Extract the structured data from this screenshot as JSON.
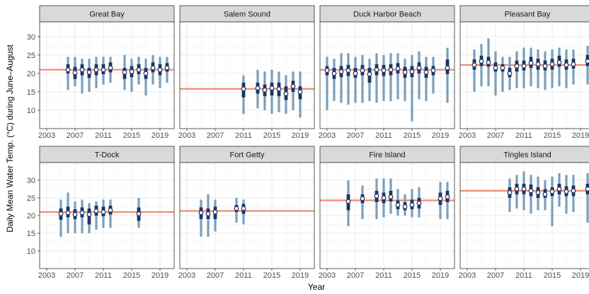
{
  "chart_data": {
    "type": "faceted-pointrange",
    "xlabel": "Year",
    "ylabel": "Daily Mean Water Temp. (°C) during June–August",
    "x_ticks": [
      2003,
      2007,
      2011,
      2015,
      2019
    ],
    "xlim": [
      2002,
      2021
    ],
    "facet_rows": [
      {
        "ylim": [
          5,
          34
        ],
        "y_ticks": [
          10,
          15,
          20,
          25,
          30
        ],
        "panels": [
          "Great Bay",
          "Salem Sound",
          "Duck Harbor Beach",
          "Pleasant Bay"
        ]
      },
      {
        "ylim": [
          5,
          35
        ],
        "y_ticks": [
          10,
          15,
          20,
          25,
          30
        ],
        "panels": [
          "T-Dock",
          "Fort Getty",
          "Fire Island",
          "Tingles Island"
        ]
      }
    ],
    "colors": {
      "reference_line": "#f08a70",
      "outer_range": "#7a9fbc",
      "inner_range": "#1d3564",
      "point_fill": "#ffffff",
      "panel_bg": "#ffffff",
      "grid": "#ebebeb",
      "strip_bg": "#d9d9d9",
      "border": "#333333"
    },
    "panels": [
      {
        "name": "Great Bay",
        "reference": 21.0,
        "series": [
          {
            "x": 2006,
            "mean": 21.0,
            "q25": 20.0,
            "q75": 22.5,
            "min": 15.5,
            "max": 24.5
          },
          {
            "x": 2007,
            "mean": 20.2,
            "q25": 18.5,
            "q75": 21.8,
            "min": 16.5,
            "max": 24.5
          },
          {
            "x": 2008,
            "mean": 21.0,
            "q25": 19.5,
            "q75": 22.5,
            "min": 14.5,
            "max": 24.0
          },
          {
            "x": 2009,
            "mean": 20.3,
            "q25": 18.8,
            "q75": 21.5,
            "min": 15.0,
            "max": 24.0
          },
          {
            "x": 2010,
            "mean": 21.0,
            "q25": 19.5,
            "q75": 22.5,
            "min": 16.0,
            "max": 24.5
          },
          {
            "x": 2011,
            "mean": 21.0,
            "q25": 19.8,
            "q75": 22.5,
            "min": 17.0,
            "max": 24.5
          },
          {
            "x": 2012,
            "mean": 21.5,
            "q25": 20.3,
            "q75": 23.0,
            "min": 17.5,
            "max": 24.5
          },
          {
            "x": 2014,
            "mean": 20.3,
            "q25": 18.5,
            "q75": 21.5,
            "min": 15.5,
            "max": 25.0
          },
          {
            "x": 2015,
            "mean": 20.5,
            "q25": 19.0,
            "q75": 22.0,
            "min": 15.0,
            "max": 24.0
          },
          {
            "x": 2016,
            "mean": 21.0,
            "q25": 19.8,
            "q75": 22.5,
            "min": 17.0,
            "max": 24.5
          },
          {
            "x": 2017,
            "mean": 20.0,
            "q25": 18.5,
            "q75": 21.5,
            "min": 14.0,
            "max": 24.0
          },
          {
            "x": 2018,
            "mean": 21.5,
            "q25": 20.3,
            "q75": 23.0,
            "min": 17.0,
            "max": 25.0
          },
          {
            "x": 2019,
            "mean": 21.0,
            "q25": 19.5,
            "q75": 22.5,
            "min": 16.0,
            "max": 24.5
          },
          {
            "x": 2020,
            "mean": 21.5,
            "q25": 20.5,
            "q75": 22.8,
            "min": 17.5,
            "max": 24.5
          }
        ]
      },
      {
        "name": "Salem Sound",
        "reference": 15.8,
        "series": [
          {
            "x": 2011,
            "mean": 15.8,
            "q25": 13.5,
            "q75": 17.5,
            "min": 9.0,
            "max": 19.5
          },
          {
            "x": 2013,
            "mean": 16.0,
            "q25": 14.5,
            "q75": 17.5,
            "min": 10.5,
            "max": 21.0
          },
          {
            "x": 2014,
            "mean": 15.5,
            "q25": 13.8,
            "q75": 17.0,
            "min": 10.0,
            "max": 20.5
          },
          {
            "x": 2015,
            "mean": 16.0,
            "q25": 14.0,
            "q75": 17.5,
            "min": 9.0,
            "max": 21.0
          },
          {
            "x": 2016,
            "mean": 15.8,
            "q25": 13.8,
            "q75": 17.5,
            "min": 9.5,
            "max": 20.5
          },
          {
            "x": 2017,
            "mean": 14.5,
            "q25": 12.8,
            "q75": 16.5,
            "min": 9.0,
            "max": 19.5
          },
          {
            "x": 2018,
            "mean": 16.5,
            "q25": 15.0,
            "q75": 18.0,
            "min": 10.0,
            "max": 20.5
          },
          {
            "x": 2019,
            "mean": 15.0,
            "q25": 13.0,
            "q75": 16.5,
            "min": 8.0,
            "max": 20.5
          }
        ]
      },
      {
        "name": "Duck Harbor Beach",
        "reference": 21.0,
        "series": [
          {
            "x": 2003,
            "mean": 20.8,
            "q25": 19.5,
            "q75": 22.0,
            "min": 10.0,
            "max": 24.5
          },
          {
            "x": 2004,
            "mean": 20.0,
            "q25": 18.5,
            "q75": 21.5,
            "min": 12.5,
            "max": 24.0
          },
          {
            "x": 2005,
            "mean": 20.5,
            "q25": 19.0,
            "q75": 22.0,
            "min": 12.0,
            "max": 25.5
          },
          {
            "x": 2006,
            "mean": 20.8,
            "q25": 19.3,
            "q75": 22.3,
            "min": 11.5,
            "max": 25.5
          },
          {
            "x": 2007,
            "mean": 20.0,
            "q25": 18.8,
            "q75": 21.5,
            "min": 12.0,
            "max": 24.5
          },
          {
            "x": 2008,
            "mean": 20.8,
            "q25": 19.5,
            "q75": 22.3,
            "min": 12.0,
            "max": 25.0
          },
          {
            "x": 2009,
            "mean": 19.8,
            "q25": 17.5,
            "q75": 21.5,
            "min": 12.5,
            "max": 24.0
          },
          {
            "x": 2010,
            "mean": 21.0,
            "q25": 19.5,
            "q75": 22.5,
            "min": 12.0,
            "max": 25.5
          },
          {
            "x": 2011,
            "mean": 20.8,
            "q25": 19.3,
            "q75": 22.3,
            "min": 12.5,
            "max": 25.0
          },
          {
            "x": 2012,
            "mean": 21.0,
            "q25": 19.5,
            "q75": 22.5,
            "min": 12.5,
            "max": 25.5
          },
          {
            "x": 2013,
            "mean": 21.3,
            "q25": 20.0,
            "q75": 22.8,
            "min": 13.0,
            "max": 25.5
          },
          {
            "x": 2014,
            "mean": 20.3,
            "q25": 18.8,
            "q75": 21.8,
            "min": 12.5,
            "max": 24.0
          },
          {
            "x": 2015,
            "mean": 20.5,
            "q25": 19.0,
            "q75": 22.0,
            "min": 7.0,
            "max": 25.0
          },
          {
            "x": 2016,
            "mean": 21.5,
            "q25": 20.0,
            "q75": 23.0,
            "min": 13.0,
            "max": 26.0
          },
          {
            "x": 2017,
            "mean": 20.3,
            "q25": 18.8,
            "q75": 21.8,
            "min": 12.5,
            "max": 24.5
          },
          {
            "x": 2018,
            "mean": 20.8,
            "q25": 19.5,
            "q75": 22.0,
            "min": 14.5,
            "max": 24.5
          },
          {
            "x": 2020,
            "mean": 21.5,
            "q25": 19.8,
            "q75": 23.8,
            "min": 12.0,
            "max": 27.0
          }
        ]
      },
      {
        "name": "Pleasant Bay",
        "reference": 22.3,
        "series": [
          {
            "x": 2004,
            "mean": 22.3,
            "q25": 21.0,
            "q75": 23.8,
            "min": 15.0,
            "max": 26.5
          },
          {
            "x": 2005,
            "mean": 23.3,
            "q25": 22.0,
            "q75": 24.8,
            "min": 16.5,
            "max": 28.0
          },
          {
            "x": 2006,
            "mean": 23.0,
            "q25": 21.8,
            "q75": 24.5,
            "min": 16.5,
            "max": 29.5
          },
          {
            "x": 2007,
            "mean": 21.5,
            "q25": 20.5,
            "q75": 23.0,
            "min": 14.0,
            "max": 26.0
          },
          {
            "x": 2008,
            "mean": 21.5,
            "q25": 20.5,
            "q75": 22.5,
            "min": 15.0,
            "max": 24.5
          },
          {
            "x": 2009,
            "mean": 20.0,
            "q25": 19.0,
            "q75": 21.5,
            "min": 15.5,
            "max": 24.5
          },
          {
            "x": 2010,
            "mean": 22.0,
            "q25": 20.5,
            "q75": 23.5,
            "min": 16.0,
            "max": 26.0
          },
          {
            "x": 2011,
            "mean": 22.0,
            "q25": 20.8,
            "q75": 23.5,
            "min": 16.0,
            "max": 27.0
          },
          {
            "x": 2012,
            "mean": 22.8,
            "q25": 21.5,
            "q75": 24.5,
            "min": 16.5,
            "max": 27.0
          },
          {
            "x": 2013,
            "mean": 22.5,
            "q25": 21.0,
            "q75": 24.0,
            "min": 16.0,
            "max": 26.5
          },
          {
            "x": 2014,
            "mean": 22.0,
            "q25": 20.8,
            "q75": 23.5,
            "min": 15.5,
            "max": 26.0
          },
          {
            "x": 2015,
            "mean": 22.5,
            "q25": 21.0,
            "q75": 24.0,
            "min": 16.0,
            "max": 26.5
          },
          {
            "x": 2016,
            "mean": 23.0,
            "q25": 21.8,
            "q75": 24.8,
            "min": 16.5,
            "max": 27.0
          },
          {
            "x": 2017,
            "mean": 22.3,
            "q25": 21.0,
            "q75": 23.8,
            "min": 16.0,
            "max": 26.5
          },
          {
            "x": 2018,
            "mean": 22.5,
            "q25": 21.3,
            "q75": 24.0,
            "min": 17.0,
            "max": 26.5
          },
          {
            "x": 2020,
            "mean": 23.3,
            "q25": 22.0,
            "q75": 25.0,
            "min": 17.0,
            "max": 27.5
          }
        ]
      },
      {
        "name": "T-Dock",
        "reference": 21.0,
        "series": [
          {
            "x": 2005,
            "mean": 20.5,
            "q25": 18.8,
            "q75": 22.0,
            "min": 14.0,
            "max": 24.5
          },
          {
            "x": 2006,
            "mean": 20.8,
            "q25": 19.5,
            "q75": 22.5,
            "min": 15.0,
            "max": 26.5
          },
          {
            "x": 2007,
            "mean": 20.3,
            "q25": 19.0,
            "q75": 21.8,
            "min": 15.0,
            "max": 24.0
          },
          {
            "x": 2008,
            "mean": 20.8,
            "q25": 19.5,
            "q75": 22.3,
            "min": 15.0,
            "max": 24.5
          },
          {
            "x": 2009,
            "mean": 20.3,
            "q25": 17.5,
            "q75": 22.0,
            "min": 15.0,
            "max": 23.5
          },
          {
            "x": 2010,
            "mean": 21.3,
            "q25": 20.0,
            "q75": 22.8,
            "min": 16.0,
            "max": 24.0
          },
          {
            "x": 2011,
            "mean": 21.0,
            "q25": 19.8,
            "q75": 22.5,
            "min": 16.5,
            "max": 24.5
          },
          {
            "x": 2012,
            "mean": 21.5,
            "q25": 20.3,
            "q75": 22.8,
            "min": 16.5,
            "max": 24.5
          },
          {
            "x": 2016,
            "mean": 20.5,
            "q25": 18.5,
            "q75": 22.3,
            "min": 16.5,
            "max": 25.0
          }
        ]
      },
      {
        "name": "Fort Getty",
        "reference": 21.3,
        "series": [
          {
            "x": 2005,
            "mean": 20.8,
            "q25": 19.0,
            "q75": 22.3,
            "min": 14.0,
            "max": 24.5
          },
          {
            "x": 2006,
            "mean": 20.5,
            "q25": 19.0,
            "q75": 22.0,
            "min": 14.0,
            "max": 26.0
          },
          {
            "x": 2007,
            "mean": 21.0,
            "q25": 19.0,
            "q75": 22.5,
            "min": 15.5,
            "max": 24.5
          },
          {
            "x": 2010,
            "mean": 22.0,
            "q25": 21.0,
            "q75": 23.0,
            "min": 18.0,
            "max": 25.0
          },
          {
            "x": 2011,
            "mean": 22.0,
            "q25": 20.5,
            "q75": 23.3,
            "min": 17.5,
            "max": 24.5
          }
        ]
      },
      {
        "name": "Fire Island",
        "reference": 24.3,
        "series": [
          {
            "x": 2006,
            "mean": 24.0,
            "q25": 21.5,
            "q75": 26.0,
            "min": 17.0,
            "max": 30.0
          },
          {
            "x": 2008,
            "mean": 24.8,
            "q25": 23.5,
            "q75": 26.0,
            "min": 19.0,
            "max": 28.5
          },
          {
            "x": 2010,
            "mean": 25.5,
            "q25": 23.8,
            "q75": 27.0,
            "min": 19.0,
            "max": 30.5
          },
          {
            "x": 2011,
            "mean": 25.0,
            "q25": 23.5,
            "q75": 26.5,
            "min": 19.5,
            "max": 30.5
          },
          {
            "x": 2012,
            "mean": 25.3,
            "q25": 24.0,
            "q75": 27.0,
            "min": 20.5,
            "max": 30.5
          },
          {
            "x": 2013,
            "mean": 23.0,
            "q25": 21.8,
            "q75": 24.3,
            "min": 20.0,
            "max": 27.5
          },
          {
            "x": 2014,
            "mean": 22.5,
            "q25": 21.5,
            "q75": 23.8,
            "min": 20.0,
            "max": 26.0
          },
          {
            "x": 2015,
            "mean": 23.0,
            "q25": 21.8,
            "q75": 24.5,
            "min": 19.5,
            "max": 27.5
          },
          {
            "x": 2016,
            "mean": 23.5,
            "q25": 22.0,
            "q75": 25.0,
            "min": 19.5,
            "max": 28.0
          },
          {
            "x": 2019,
            "mean": 24.8,
            "q25": 23.0,
            "q75": 26.5,
            "min": 19.0,
            "max": 29.5
          },
          {
            "x": 2020,
            "mean": 25.3,
            "q25": 23.8,
            "q75": 27.0,
            "min": 19.0,
            "max": 29.5
          }
        ]
      },
      {
        "name": "Tingles Island",
        "reference": 27.0,
        "series": [
          {
            "x": 2009,
            "mean": 26.5,
            "q25": 25.0,
            "q75": 28.0,
            "min": 21.0,
            "max": 30.5
          },
          {
            "x": 2010,
            "mean": 27.5,
            "q25": 26.0,
            "q75": 29.0,
            "min": 22.0,
            "max": 31.5
          },
          {
            "x": 2011,
            "mean": 27.5,
            "q25": 26.0,
            "q75": 29.0,
            "min": 21.5,
            "max": 32.5
          },
          {
            "x": 2012,
            "mean": 27.0,
            "q25": 25.5,
            "q75": 28.8,
            "min": 20.5,
            "max": 31.5
          },
          {
            "x": 2013,
            "mean": 26.5,
            "q25": 25.0,
            "q75": 28.0,
            "min": 21.5,
            "max": 31.0
          },
          {
            "x": 2014,
            "mean": 26.0,
            "q25": 25.0,
            "q75": 27.5,
            "min": 21.5,
            "max": 30.0
          },
          {
            "x": 2015,
            "mean": 26.8,
            "q25": 25.5,
            "q75": 28.0,
            "min": 17.0,
            "max": 31.0
          },
          {
            "x": 2016,
            "mean": 27.5,
            "q25": 26.0,
            "q75": 29.0,
            "min": 22.5,
            "max": 32.0
          },
          {
            "x": 2017,
            "mean": 26.8,
            "q25": 25.5,
            "q75": 28.3,
            "min": 20.5,
            "max": 31.5
          },
          {
            "x": 2018,
            "mean": 27.0,
            "q25": 25.5,
            "q75": 28.5,
            "min": 21.0,
            "max": 31.5
          },
          {
            "x": 2020,
            "mean": 27.5,
            "q25": 26.0,
            "q75": 29.0,
            "min": 18.0,
            "max": 32.0
          }
        ]
      }
    ]
  }
}
